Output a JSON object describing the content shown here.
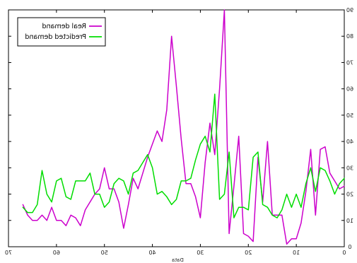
{
  "chart_data": {
    "type": "line",
    "title": "",
    "xlabel": "Data",
    "ylabel": "",
    "xlim": [
      0,
      70
    ],
    "ylim": [
      0,
      90
    ],
    "x_reversed": true,
    "y_axis_side": "right",
    "text_mirrored": true,
    "grid": false,
    "legend_position": "top-left",
    "xticks": [
      "0",
      "10",
      "20",
      "30",
      "40",
      "50",
      "60",
      "70"
    ],
    "yticks": [
      "0",
      "10",
      "20",
      "30",
      "40",
      "50",
      "60",
      "70",
      "80",
      "90"
    ],
    "series": [
      {
        "name": "Real demand",
        "color": "#cc00cc",
        "x": [
          0,
          1,
          2,
          3,
          4,
          5,
          6,
          7,
          8,
          9,
          10,
          11,
          12,
          13,
          14,
          15,
          16,
          17,
          18,
          19,
          20,
          21,
          22,
          23,
          24,
          25,
          26,
          27,
          28,
          29,
          30,
          31,
          32,
          33,
          34,
          35,
          36,
          37,
          38,
          39,
          40,
          41,
          42,
          43,
          44,
          45,
          46,
          47,
          48,
          49,
          50,
          51,
          52,
          53,
          54,
          55,
          56,
          57,
          58,
          59,
          60,
          61,
          62,
          63,
          64,
          65,
          66,
          67
        ],
        "y": [
          23,
          22,
          25,
          28,
          38,
          37,
          12,
          37,
          21,
          9,
          3,
          3,
          1,
          12,
          12,
          12,
          40,
          17,
          34,
          2,
          4,
          5,
          42,
          23,
          5,
          90,
          60,
          35,
          47,
          32,
          11,
          19,
          24,
          24,
          41,
          61,
          80,
          52,
          40,
          44,
          39,
          34,
          28,
          22,
          26,
          16,
          7,
          17,
          22,
          22,
          30,
          22,
          20,
          17,
          14,
          8,
          11,
          12,
          8,
          10,
          10,
          15,
          10,
          12,
          10,
          10,
          12,
          16
        ],
        "values": [
          23,
          22,
          25,
          28,
          38,
          37,
          12,
          37,
          21,
          9,
          3,
          3,
          1,
          12,
          12,
          12,
          40,
          17,
          34,
          2,
          4,
          5,
          42,
          23,
          5,
          90,
          60,
          35,
          47,
          32,
          11,
          19,
          24,
          24,
          41,
          61,
          80,
          52,
          40,
          44,
          39,
          34,
          28,
          22,
          26,
          16,
          7,
          17,
          22,
          22,
          30,
          22,
          20,
          17,
          14,
          8,
          11,
          12,
          8,
          10,
          10,
          15,
          10,
          12,
          10,
          10,
          12,
          16
        ]
      },
      {
        "name": "Predicted demand",
        "color": "#00dd00",
        "x": [
          0,
          1,
          2,
          3,
          4,
          5,
          6,
          7,
          8,
          9,
          10,
          11,
          12,
          13,
          14,
          15,
          16,
          17,
          18,
          19,
          20,
          21,
          22,
          23,
          24,
          25,
          26,
          27,
          28,
          29,
          30,
          31,
          32,
          33,
          34,
          35,
          36,
          37,
          38,
          39,
          40,
          41,
          42,
          43,
          44,
          45,
          46,
          47,
          48,
          49,
          50,
          51,
          52,
          53,
          54,
          55,
          56,
          57,
          58,
          59,
          60,
          61,
          62,
          63,
          64,
          65,
          66,
          67
        ],
        "y": [
          26,
          24,
          20,
          25,
          29,
          30,
          21,
          30,
          24,
          15,
          20,
          15,
          20,
          14,
          11,
          12,
          15,
          16,
          36,
          34,
          14,
          15,
          15,
          11,
          36,
          20,
          18,
          58,
          36,
          42,
          39,
          33,
          26,
          25,
          25,
          18,
          16,
          19,
          21,
          20,
          30,
          35,
          32,
          29,
          28,
          20,
          25,
          26,
          24,
          17,
          15,
          20,
          20,
          28,
          25,
          25,
          25,
          18,
          19,
          26,
          25,
          17,
          20,
          29,
          16,
          13,
          13,
          15
        ],
        "values": [
          26,
          24,
          20,
          25,
          29,
          30,
          21,
          30,
          24,
          15,
          20,
          15,
          20,
          14,
          11,
          12,
          15,
          16,
          36,
          34,
          14,
          15,
          15,
          11,
          36,
          20,
          18,
          58,
          36,
          42,
          39,
          33,
          26,
          25,
          25,
          18,
          16,
          19,
          21,
          20,
          30,
          35,
          32,
          29,
          28,
          20,
          25,
          26,
          24,
          17,
          15,
          20,
          20,
          28,
          25,
          25,
          25,
          18,
          19,
          26,
          25,
          17,
          20,
          29,
          16,
          13,
          13,
          15
        ]
      }
    ]
  }
}
